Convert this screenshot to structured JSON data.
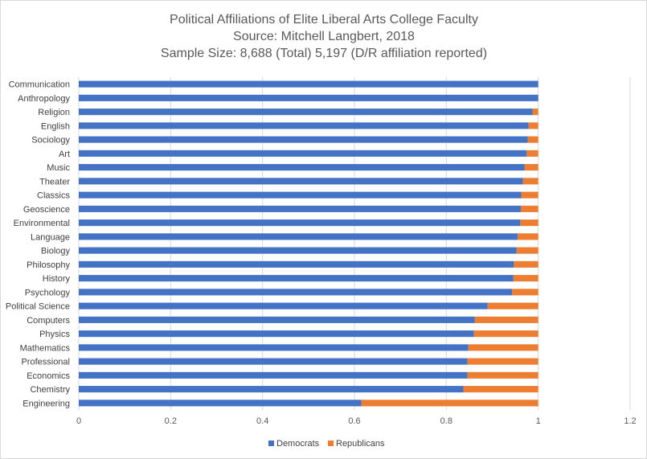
{
  "colors": {
    "democrats": "#4472C4",
    "republicans": "#ED7D31",
    "grid": "#d9d9d9",
    "text": "#595959"
  },
  "chart_data": {
    "type": "bar",
    "orientation": "horizontal",
    "stacked": true,
    "title": [
      "Political Affiliations of Elite Liberal Arts College Faculty",
      "Source: Mitchell Langbert, 2018",
      "Sample Size: 8,688 (Total) 5,197 (D/R affiliation reported)"
    ],
    "categories": [
      "Communication",
      "Anthropology",
      "Religion",
      "English",
      "Sociology",
      "Art",
      "Music",
      "Theater",
      "Classics",
      "Geoscience",
      "Environmental",
      "Language",
      "Biology",
      "Philosophy",
      "History",
      "Psychology",
      "Political Science",
      "Computers",
      "Physics",
      "Mathematics",
      "Professional",
      "Economics",
      "Chemistry",
      "Engineering"
    ],
    "series": [
      {
        "name": "Democrats",
        "values": [
          1.0,
          1.0,
          0.988,
          0.979,
          0.977,
          0.975,
          0.97,
          0.967,
          0.963,
          0.962,
          0.961,
          0.955,
          0.953,
          0.947,
          0.946,
          0.943,
          0.89,
          0.862,
          0.86,
          0.848,
          0.846,
          0.846,
          0.837,
          0.615
        ]
      },
      {
        "name": "Republicans",
        "values": [
          0.0,
          0.0,
          0.012,
          0.021,
          0.023,
          0.025,
          0.03,
          0.033,
          0.037,
          0.038,
          0.039,
          0.045,
          0.047,
          0.053,
          0.054,
          0.057,
          0.11,
          0.138,
          0.14,
          0.152,
          0.154,
          0.154,
          0.163,
          0.385
        ]
      }
    ],
    "xlim": [
      0,
      1.2
    ],
    "xticks": [
      "0",
      "0.2",
      "0.4",
      "0.6",
      "0.8",
      "1",
      "1.2"
    ],
    "xlabel": "",
    "ylabel": "",
    "grid": true,
    "legend": "bottom"
  }
}
